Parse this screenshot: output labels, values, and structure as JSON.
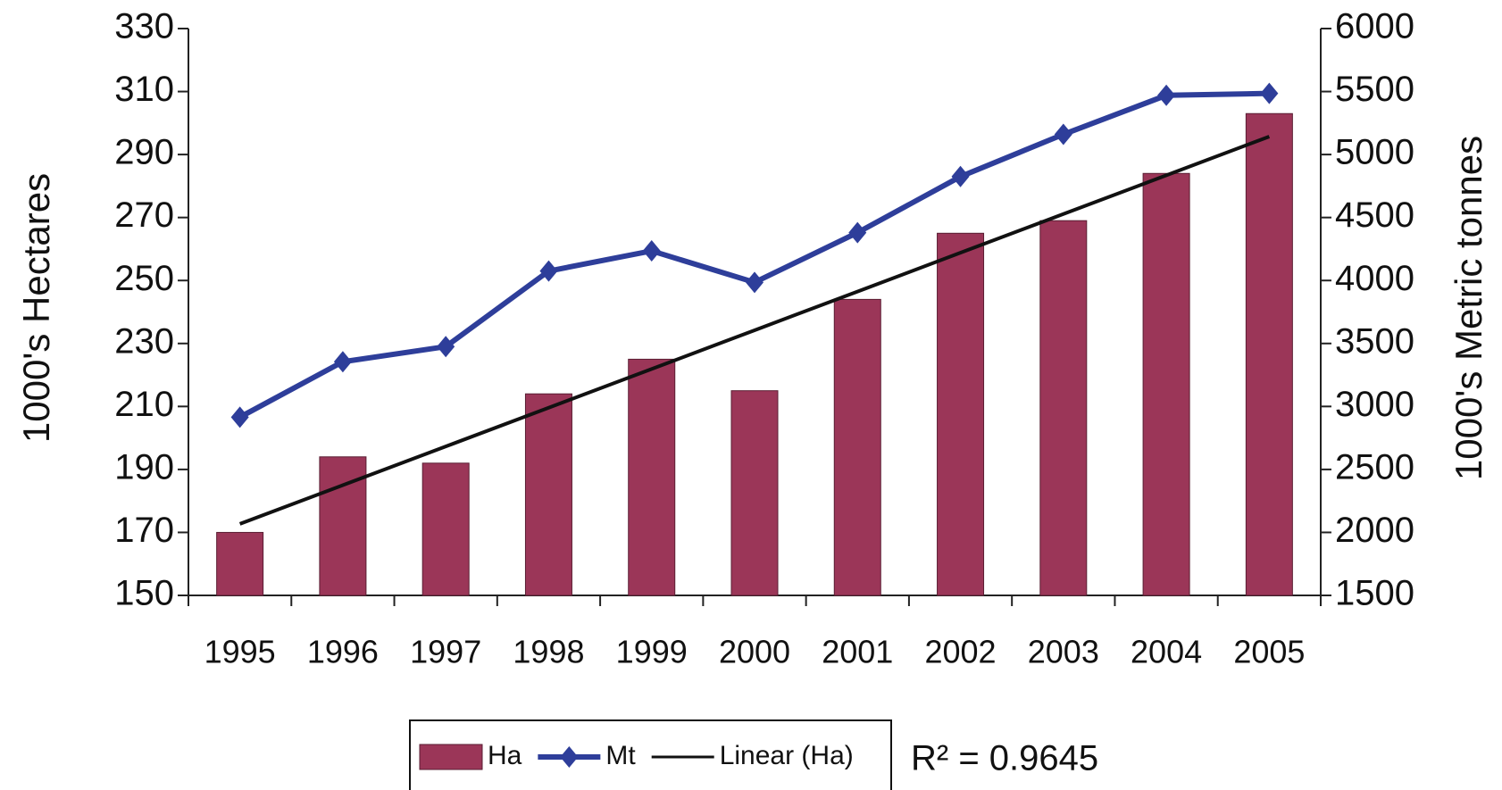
{
  "chart_data": {
    "type": "bar",
    "categories": [
      "1995",
      "1996",
      "1997",
      "1998",
      "1999",
      "2000",
      "2001",
      "2002",
      "2003",
      "2004",
      "2005"
    ],
    "series": [
      {
        "name": "Ha",
        "type": "bar",
        "color": "#9b3658",
        "values": [
          170,
          194,
          192,
          214,
          225,
          215,
          244,
          265,
          269,
          284,
          303
        ]
      },
      {
        "name": "Mt",
        "type": "line",
        "axis": "y2",
        "marker": "diamond",
        "color": "#2e3e9a",
        "values": [
          2915,
          3355,
          3475,
          4075,
          4235,
          3985,
          4380,
          4825,
          5160,
          5470,
          5485
        ]
      },
      {
        "name": "Linear (Ha)",
        "type": "line",
        "color": "#111111",
        "values": [
          172.7,
          185.0,
          197.3,
          209.6,
          221.9,
          234.2,
          246.5,
          258.8,
          271.1,
          283.4,
          295.7
        ]
      }
    ],
    "ylabel": "1000's Hectares",
    "y2label": "1000's Metric tonnes",
    "ylim": [
      150,
      330
    ],
    "yticks": [
      150,
      170,
      190,
      210,
      230,
      250,
      270,
      290,
      310,
      330
    ],
    "y2lim": [
      1500,
      6000
    ],
    "y2ticks": [
      1500,
      2000,
      2500,
      3000,
      3500,
      4000,
      4500,
      5000,
      5500,
      6000
    ],
    "annotation": "R² = 0.9645",
    "legend": "bottom"
  }
}
